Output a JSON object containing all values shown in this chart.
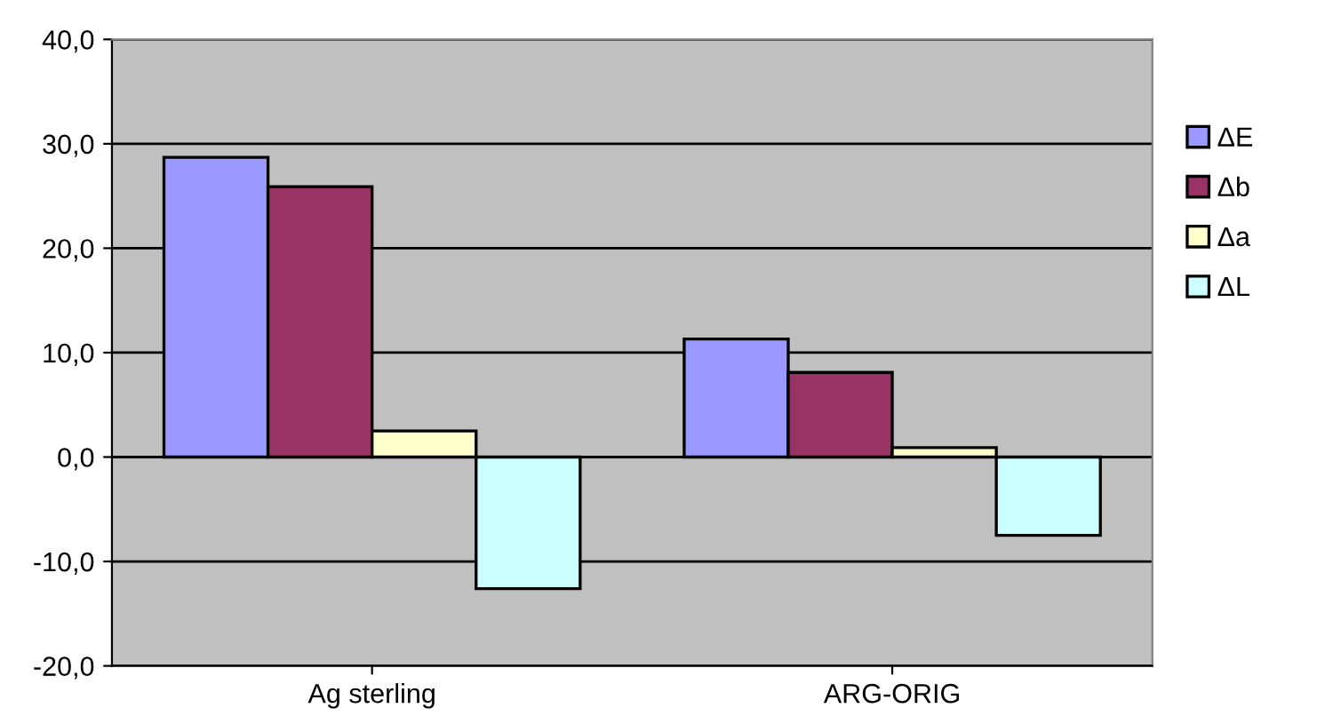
{
  "chart_data": {
    "type": "bar",
    "categories": [
      "Ag sterling",
      "ARG-ORIG"
    ],
    "series": [
      {
        "name": "ΔE",
        "color": "#9999ff",
        "values": [
          28.7,
          11.3
        ]
      },
      {
        "name": "Δb",
        "color": "#993366",
        "values": [
          25.9,
          8.1
        ]
      },
      {
        "name": "Δa",
        "color": "#ffffcc",
        "values": [
          2.5,
          0.9
        ]
      },
      {
        "name": "ΔL",
        "color": "#ccffff",
        "values": [
          -12.6,
          -7.5
        ]
      }
    ],
    "ylim": [
      -20,
      40
    ],
    "yticks": [
      {
        "value": -20,
        "label": "-20,0"
      },
      {
        "value": -10,
        "label": "-10,0"
      },
      {
        "value": 0,
        "label": "0,0"
      },
      {
        "value": 10,
        "label": "10,0"
      },
      {
        "value": 20,
        "label": "20,0"
      },
      {
        "value": 30,
        "label": "30,0"
      },
      {
        "value": 40,
        "label": "40,0"
      }
    ],
    "grid": "y",
    "legend": "top right"
  }
}
